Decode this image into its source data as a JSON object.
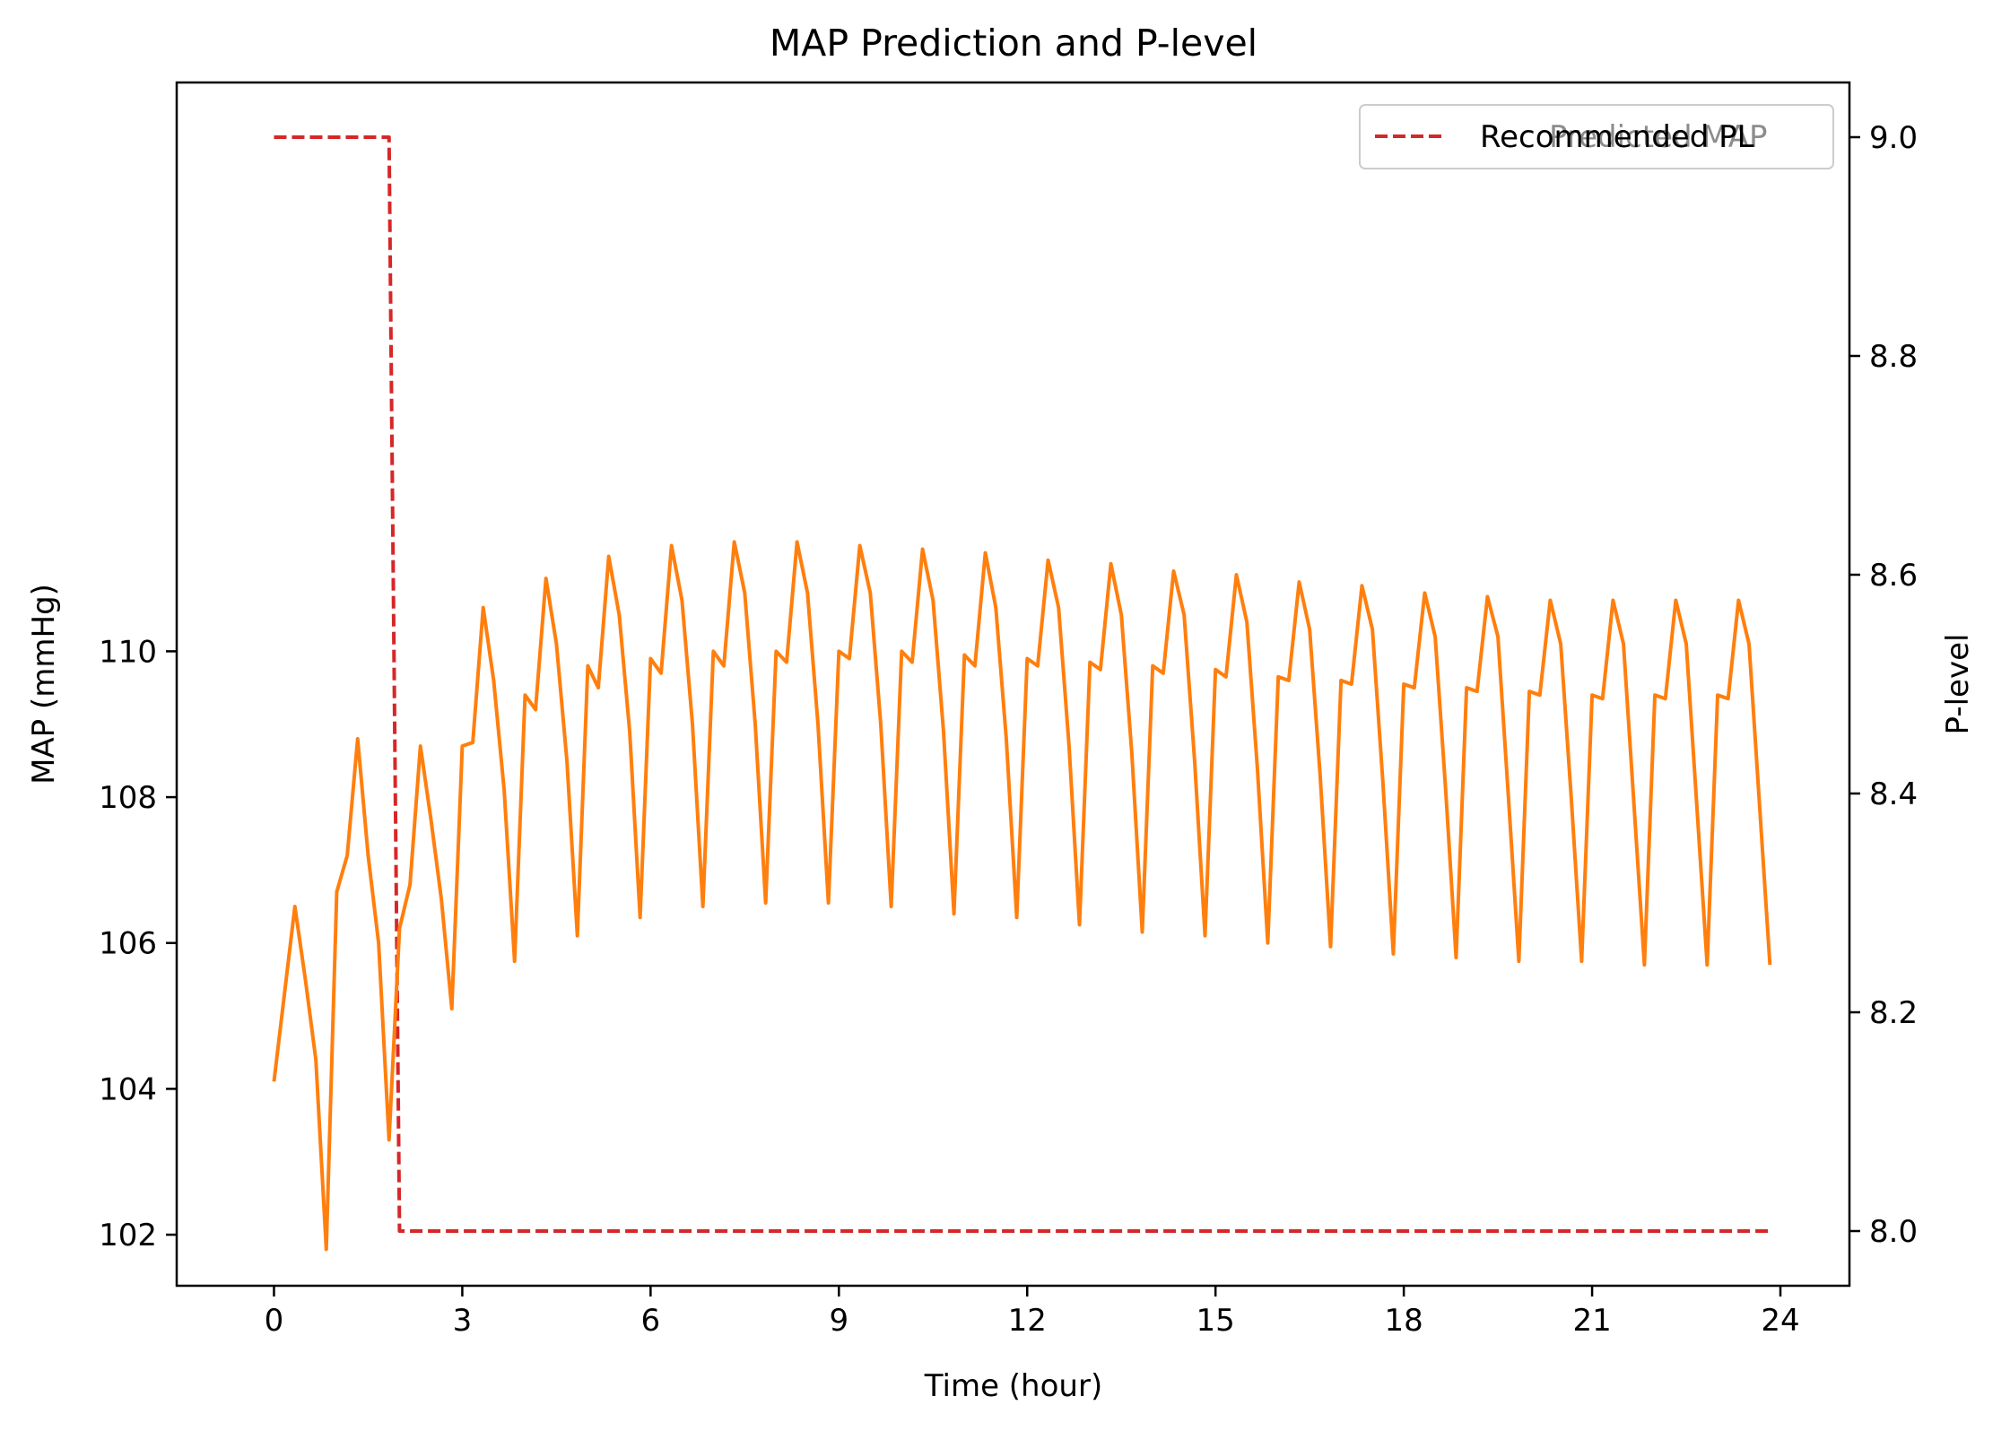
{
  "chart_data": {
    "type": "line",
    "title": "MAP Prediction and P-level",
    "xlabel": "Time (hour)",
    "ylabel_left": "MAP (mmHg)",
    "ylabel_right": "P-level",
    "xlim": [
      -1.55,
      25.1
    ],
    "ylim_left": [
      101.3,
      117.8
    ],
    "ylim_right": [
      7.95,
      9.05
    ],
    "xticks": [
      "0",
      "3",
      "6",
      "9",
      "12",
      "15",
      "18",
      "21",
      "24"
    ],
    "yticks_left": [
      "102",
      "104",
      "106",
      "108",
      "110"
    ],
    "yticks_right": [
      "8.0",
      "8.2",
      "8.4",
      "8.6",
      "8.8",
      "9.0"
    ],
    "legend": {
      "position": "upper right",
      "entries": [
        "Recommended PL",
        "Predicted MAP"
      ]
    },
    "series": [
      {
        "name": "Predicted MAP",
        "axis": "left",
        "color": "#ff7f0e",
        "style": "solid",
        "x": [
          0,
          0.333,
          0.5,
          0.667,
          0.833,
          1.0,
          1.167,
          1.333,
          1.5,
          1.667,
          1.833,
          2.0,
          2.167,
          2.333,
          2.5,
          2.667,
          2.833,
          3.0,
          3.167,
          3.333,
          3.5,
          3.667,
          3.833,
          4.0,
          4.167,
          4.333,
          4.5,
          4.667,
          4.833,
          5.0,
          5.167,
          5.333,
          5.5,
          5.667,
          5.833,
          6.0,
          6.167,
          6.333,
          6.5,
          6.667,
          6.833,
          7.0,
          7.167,
          7.333,
          7.5,
          7.667,
          7.833,
          8.0,
          8.167,
          8.333,
          8.5,
          8.667,
          8.833,
          9.0,
          9.167,
          9.333,
          9.5,
          9.667,
          9.833,
          10.0,
          10.167,
          10.333,
          10.5,
          10.667,
          10.833,
          11.0,
          11.167,
          11.333,
          11.5,
          11.667,
          11.833,
          12.0,
          12.167,
          12.333,
          12.5,
          12.667,
          12.833,
          13.0,
          13.167,
          13.333,
          13.5,
          13.667,
          13.833,
          14.0,
          14.167,
          14.333,
          14.5,
          14.667,
          14.833,
          15.0,
          15.167,
          15.333,
          15.5,
          15.667,
          15.833,
          16.0,
          16.167,
          16.333,
          16.5,
          16.667,
          16.833,
          17.0,
          17.167,
          17.333,
          17.5,
          17.667,
          17.833,
          18.0,
          18.167,
          18.333,
          18.5,
          18.667,
          18.833,
          19.0,
          19.167,
          19.333,
          19.5,
          19.667,
          19.833,
          20.0,
          20.167,
          20.333,
          20.5,
          20.667,
          20.833,
          21.0,
          21.167,
          21.333,
          21.5,
          21.667,
          21.833,
          22.0,
          22.167,
          22.333,
          22.5,
          22.667,
          22.833,
          23.0,
          23.167,
          23.333,
          23.5,
          23.667,
          23.833
        ],
        "y": [
          104.1,
          106.5,
          105.5,
          104.4,
          101.8,
          106.7,
          107.2,
          108.8,
          107.2,
          106.0,
          103.3,
          106.2,
          106.8,
          108.7,
          107.7,
          106.6,
          105.1,
          108.7,
          108.75,
          110.6,
          109.6,
          108.1,
          105.75,
          109.4,
          109.2,
          111.0,
          110.1,
          108.5,
          106.1,
          109.8,
          109.5,
          111.3,
          110.5,
          108.9,
          106.35,
          109.9,
          109.7,
          111.45,
          110.7,
          109.0,
          106.5,
          110.0,
          109.8,
          111.5,
          110.8,
          109.0,
          106.55,
          110.0,
          109.85,
          111.5,
          110.8,
          109.0,
          106.55,
          110.0,
          109.9,
          111.45,
          110.8,
          109.0,
          106.5,
          110.0,
          109.85,
          111.4,
          110.7,
          108.9,
          106.4,
          109.95,
          109.8,
          111.35,
          110.6,
          108.8,
          106.35,
          109.9,
          109.8,
          111.25,
          110.6,
          108.7,
          106.25,
          109.85,
          109.75,
          111.2,
          110.5,
          108.6,
          106.15,
          109.8,
          109.7,
          111.1,
          110.5,
          108.5,
          106.1,
          109.75,
          109.65,
          111.05,
          110.4,
          108.4,
          106.0,
          109.65,
          109.6,
          110.95,
          110.3,
          108.3,
          105.95,
          109.6,
          109.55,
          110.9,
          110.3,
          108.2,
          105.85,
          109.55,
          109.5,
          110.8,
          110.2,
          108.1,
          105.8,
          109.5,
          109.45,
          110.75,
          110.2,
          108.0,
          105.75,
          109.45,
          109.4,
          110.7,
          110.1,
          108.0,
          105.75,
          109.4,
          109.35,
          110.7,
          110.1,
          107.9,
          105.7,
          109.4,
          109.35,
          110.7,
          110.1,
          107.9,
          105.7,
          109.4,
          109.35,
          110.7,
          110.1,
          107.9,
          105.7
        ]
      },
      {
        "name": "Recommended PL",
        "axis": "right",
        "color": "#d62728",
        "style": "dashed",
        "x": [
          0,
          1.833,
          2.0,
          23.833
        ],
        "y": [
          9.0,
          9.0,
          8.0,
          8.0
        ]
      }
    ]
  }
}
